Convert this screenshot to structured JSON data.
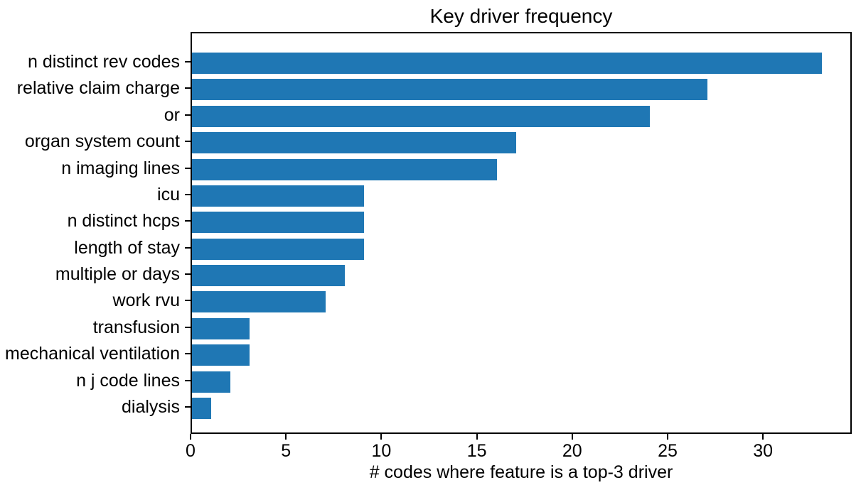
{
  "chart_data": {
    "type": "bar",
    "orientation": "horizontal",
    "title": "Key driver frequency",
    "xlabel": "# codes where feature is a top-3 driver",
    "ylabel": "",
    "categories": [
      "n distinct rev codes",
      "relative claim charge",
      "or",
      "organ system count",
      "n imaging lines",
      "icu",
      "n distinct hcps",
      "length of stay",
      "multiple or days",
      "work rvu",
      "transfusion",
      "mechanical ventilation",
      "n j code lines",
      "dialysis"
    ],
    "values": [
      33,
      27,
      24,
      17,
      16,
      9,
      9,
      9,
      8,
      7,
      3,
      3,
      2,
      1
    ],
    "xticks": [
      0,
      5,
      10,
      15,
      20,
      25,
      30
    ],
    "xlim": [
      0,
      34.65
    ],
    "grid": false,
    "legend": null,
    "bar_color": "#1f77b4",
    "text_color": "#000000",
    "spine_color": "#000000",
    "background_color": "#ffffff"
  }
}
